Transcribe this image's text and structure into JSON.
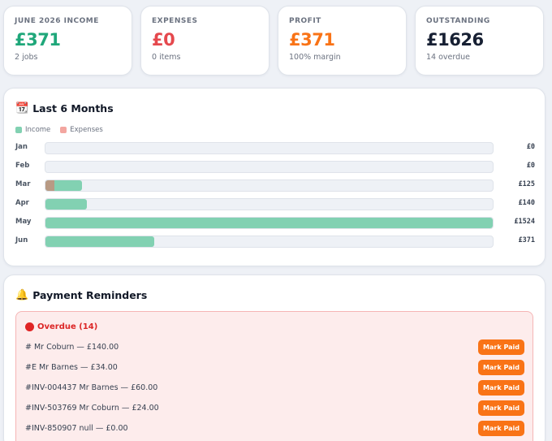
{
  "stats": [
    {
      "label": "June 2026 Income",
      "value": "£371",
      "sub": "2 jobs",
      "color": "#1fa77a"
    },
    {
      "label": "Expenses",
      "value": "£0",
      "sub": "0 items",
      "color": "#e5484d"
    },
    {
      "label": "Profit",
      "value": "£371",
      "sub": "100% margin",
      "color": "#f97316"
    },
    {
      "label": "Outstanding",
      "value": "£1626",
      "sub": "14 overdue",
      "color": "#172033"
    }
  ],
  "months_card": {
    "icon": "calendar-icon",
    "icon_glyph": "📆",
    "title": "Last 6 Months",
    "legend": {
      "income": "Income",
      "expenses": "Expenses"
    }
  },
  "chart_data": {
    "type": "bar",
    "orientation": "horizontal",
    "categories": [
      "Jan",
      "Feb",
      "Mar",
      "Apr",
      "May",
      "Jun"
    ],
    "series": [
      {
        "name": "Income",
        "values": [
          0,
          0,
          125,
          140,
          1524,
          371
        ],
        "color": "#82d1b2"
      },
      {
        "name": "Expenses",
        "values": [
          0,
          0,
          30,
          0,
          0,
          0
        ],
        "color": "#b89a84"
      }
    ],
    "value_labels": [
      "£0",
      "£0",
      "£125",
      "£140",
      "£1524",
      "£371"
    ],
    "xlim": [
      0,
      1524
    ],
    "legend": "top-left"
  },
  "reminders_card": {
    "icon": "bell-icon",
    "icon_glyph": "🔔",
    "title": "Payment Reminders",
    "overdue_label": "Overdue (14)",
    "button_label": "Mark Paid",
    "items": [
      "# Mr Coburn — £140.00",
      "#E Mr Barnes — £34.00",
      "#INV-004437 Mr Barnes — £60.00",
      "#INV-503769 Mr Coburn — £24.00",
      "#INV-850907 null — £0.00"
    ]
  }
}
